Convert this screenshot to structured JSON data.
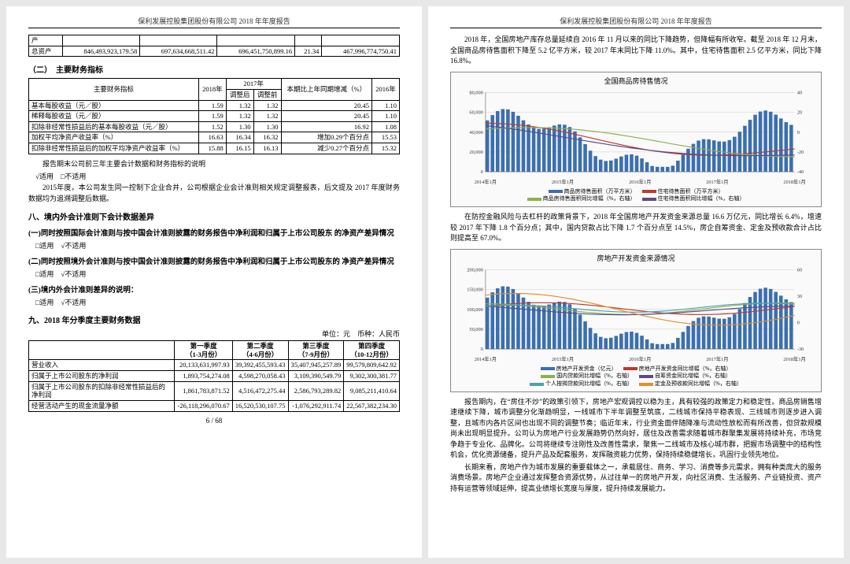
{
  "report": {
    "header": "保利发展控股集团股份有限公司 2018 年年度报告",
    "page_left": "6 / 68"
  },
  "left": {
    "row0_label": "产",
    "row1_label": "总资产",
    "row1": [
      "846,493,923,179.58",
      "697,634,668,511.42",
      "696,451,750,899.16",
      "21.34",
      "467,996,774,750.41"
    ],
    "sec2": "（二）　主要财务指标",
    "t2": {
      "h0": "主要财务指标",
      "h1": "2018年",
      "h2": "2017年",
      "h2a": "调整后",
      "h2b": "调整前",
      "h3": "本期比上年同期增减（%）",
      "h4": "2016年",
      "rows": [
        [
          "基本每股收益（元／股）",
          "1.59",
          "1.32",
          "1.32",
          "20.45",
          "1.10"
        ],
        [
          "稀释每股收益（元／股）",
          "1.59",
          "1.32",
          "1.32",
          "20.45",
          "1.10"
        ],
        [
          "扣除非经常性损益后的基本每股收益（元／股）",
          "1.52",
          "1.30",
          "1.30",
          "16.92",
          "1.08"
        ],
        [
          "加权平均净资产收益率（%）",
          "16.63",
          "16.34",
          "16.32",
          "增加0.29个百分点",
          "15.53"
        ],
        [
          "扣除非经常性损益后的加权平均净资产收益率（%）",
          "15.88",
          "16.15",
          "16.13",
          "减少0.27个百分点",
          "15.32"
        ]
      ]
    },
    "note1": "报告期末公司前三年主要会计数据和财务指标的说明",
    "note1_chk": "√适用　□不适用",
    "note2": "2015年度，本公司发生同一控制下企业合并，公司根据企业会计准则相关规定调整报表，后文提及 2017 年度财务数据均为追溯调整后数据。",
    "sec8": "八、境内外会计准则下会计数据差异",
    "sub81": "(一)同时按照国际会计准则与按中国会计准则披露的财务报告中净利润和归属于上市公司股东 的净资产差异情况",
    "chk_na": "□适用　√不适用",
    "sub82": "(二)同时按照境外会计准则与按中国会计准则披露的财务报告中净利润和归属于上市公司股东的 净资产差异情况",
    "sub83": "(三)境内外会计准则差异的说明：",
    "sec9": "九、2018 年分季度主要财务数据",
    "unit": "单位：元　币种：人民币",
    "t3": {
      "h": [
        "",
        "第一季度\n（1-3月份）",
        "第二季度\n（4-6月份）",
        "第三季度\n（7-9月份）",
        "第四季度\n（10-12月份）"
      ],
      "rows": [
        [
          "营业收入",
          "20,133,631,997.93",
          "39,392,455,593.43",
          "35,407,945,257.89",
          "99,579,809,642.92"
        ],
        [
          "归属于上市公司股东的净利润",
          "1,893,754,274.08",
          "4,598,270,058.43",
          "3,109,390,549.79",
          "9,302,300,381.77"
        ],
        [
          "归属于上市公司股东的扣除非经常性损益后的净利润",
          "1,861,783,871.52",
          "4,516,472,275.44",
          "2,586,793,289.82",
          "9,085,211,410.64"
        ],
        [
          "经营活动产生的现金流量净额",
          "-26,118,296,070.67",
          "16,520,530,107.75",
          "-1,076,292,911.74",
          "22,567,382,234.30"
        ]
      ]
    }
  },
  "right": {
    "p1": "2018 年，全国房地产库存总量延续自 2016 年 11 月以来的同比下降趋势，但降幅有所收窄。截至 2018 年 12 月末，全国商品房待售面积下降至 5.2 亿平方米，较 2017 年末同比下降 11.0%。其中，住宅待售面积 2.5 亿平方米，同比下降 16.8%。",
    "chart1": {
      "title": "全国商品房待售情况",
      "x_labels": [
        "2014年1月",
        "2015年1月",
        "2016年1月",
        "2017年1月",
        "2018年1月"
      ],
      "y1_ticks": [
        0,
        20000,
        40000,
        60000,
        80000
      ],
      "y2_ticks": [
        -40,
        -20,
        0,
        20,
        40
      ],
      "colors": {
        "bar": "#3b6fb0",
        "line1": "#c0392b",
        "line2": "#8db14a",
        "line3": "#5b4a8a",
        "grid": "#cfcfcf",
        "bg": "#ffffff"
      },
      "legend": [
        "商品房待售面积（万平方米）",
        "住宅待售面积（万平方米）",
        "商品房待售面积同比增幅（%，右轴）",
        "住宅待售面积同比增幅（%，右轴）"
      ]
    },
    "p2": "在防控金融风险与去杠杆的政策背景下，2018 年全国房地产开发资金来源总量 16.6 万亿元，同比增长 6.4%，增速较 2017 年下降 1.8 个百分点；其中，国内贷款占比下降 1.7 个百分点至 14.5%，房企自筹资金、定金及预收款合计占比则提高至 67.0%。",
    "chart2": {
      "title": "房地产开发资金来源情况",
      "x_labels": [
        "2014年1月",
        "2015年1月",
        "2016年1月",
        "2017年1月",
        "2018年1月"
      ],
      "y1_ticks": [
        0,
        50000,
        100000,
        150000,
        200000
      ],
      "y2_ticks": [
        -30,
        0,
        30,
        60
      ],
      "colors": {
        "bar": "#3b6fb0",
        "l1": "#c0392b",
        "l2": "#8db14a",
        "l3": "#5b4a8a",
        "l4": "#4aa3b0",
        "l5": "#e28f2c",
        "grid": "#cfcfcf"
      },
      "legend": [
        "房地产开发资金（亿元）",
        "房地产开发资金同比增幅（%，右轴）",
        "国内贷款同比增幅（%，右轴）",
        "自筹资金同比增幅（%，右轴）",
        "个人按揭贷款同比增幅（%，右轴）",
        "定金及预收款同比增幅（%，右轴）"
      ]
    },
    "p3": "报告期内，在“房住不炒”的政策引领下，房地产宏观调控以稳为主，具有较强的政策定力和稳定性。商品房销售增速继续下降，城市调整分化渐趋明显，一线城市下半年调整至筑底，二线城市保持平稳表现、三线城市则逐步进入调整，且城市内各片区间也出现不同的调整节奏；临近年末，行业资金面伴随降准与流动性放松而有所改善，但贷款规模尚未出现明显提升。公司认为房地产行业发展趋势仍然向好，居住及改善需求随着城市群聚集发展将持续补充，市场竞争趋于专业化、品牌化。公司将继续专注刚性及改善性需求，聚焦一二线城市及核心城市群，把握市场调整中的结构性机会，优化资源储备，提升产品及配套服务，发挥融资能力优势，保持持续稳健增长，巩固行业领先地位。",
    "p4": "长期来看，房地产作为城市发展的重要载体之一，承载居住、商务、学习、消费等多元需求，拥有种类庞大的服务消费场景。房地产企业通过发挥整合资源优势，从过往单一的房地产开发，向社区消费、生活服务、产业链投资、资产持有运营等领域延伸，提高业绩增长宽度与厚度，提升持续发展能力。"
  }
}
